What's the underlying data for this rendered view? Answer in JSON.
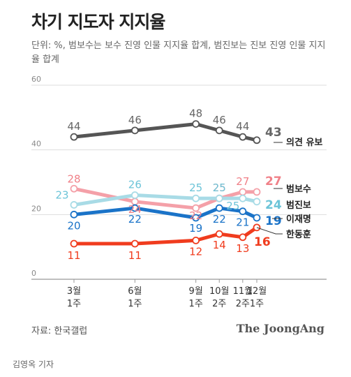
{
  "title": "차기 지도자 지지율",
  "subtitle": "단위: %, 범보수는 보수 진영 인물 지지율 합계, 범진보는 진보 진영 인물 지지율 합계",
  "source": "자료: 한국갤럽",
  "brand": "The JoongAng",
  "reporter": "김영옥 기자",
  "chart_data": {
    "type": "line",
    "categories": [
      {
        "month": "3월",
        "week": "1주"
      },
      {
        "month": "6월",
        "week": "1주"
      },
      {
        "month": "9월",
        "week": "1주"
      },
      {
        "month": "10월",
        "week": "2주"
      },
      {
        "month": "11월",
        "week": "2주"
      },
      {
        "month": "12월",
        "week": "1주"
      }
    ],
    "x_weeks": [
      0,
      13,
      26,
      31,
      36,
      39
    ],
    "ylim": [
      0,
      60
    ],
    "yticks": [
      0,
      20,
      40,
      60
    ],
    "series": [
      {
        "name": "의견 유보",
        "color": "#555555",
        "values": [
          44,
          46,
          48,
          46,
          44,
          43
        ],
        "labelColor": "#666666"
      },
      {
        "name": "범보수",
        "color": "#f4a0a8",
        "values": [
          28,
          24,
          22,
          25,
          27,
          27
        ],
        "labelColor": "#f08088"
      },
      {
        "name": "범진보",
        "color": "#a8dbe6",
        "values": [
          23,
          26,
          25,
          25,
          25,
          24
        ],
        "labelColor": "#6cc4d8"
      },
      {
        "name": "이재명",
        "color": "#1a73c8",
        "values": [
          20,
          22,
          19,
          22,
          21,
          19
        ],
        "labelColor": "#1a73c8"
      },
      {
        "name": "한동훈",
        "color": "#f03c1e",
        "values": [
          11,
          11,
          12,
          14,
          13,
          16
        ],
        "labelColor": "#f03c1e"
      }
    ]
  }
}
